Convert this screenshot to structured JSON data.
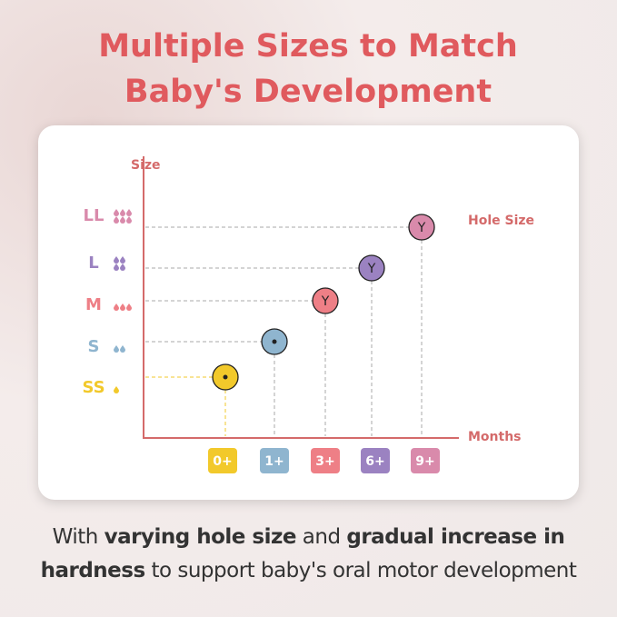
{
  "header": {
    "title_lines": [
      "Multiple Sizes to Match",
      "Baby's Development"
    ]
  },
  "diagram": {
    "y_axis_label": "Size",
    "x_axis_label": "Months",
    "hole_label": "Hole Size",
    "rows": [
      {
        "size": "SS",
        "color": "#f2c92b",
        "month": "0+"
      },
      {
        "size": "S",
        "color": "#8fb5cf",
        "month": "1+"
      },
      {
        "size": "M",
        "color": "#ee7f86",
        "month": "3+",
        "hole_letter": "Y"
      },
      {
        "size": "L",
        "color": "#9b82c1",
        "month": "6+",
        "hole_letter": "Y"
      },
      {
        "size": "LL",
        "color": "#d98aab",
        "month": "9+",
        "hole_letter": "Y"
      }
    ]
  },
  "footer": {
    "lines": [
      [
        {
          "text": "With "
        },
        {
          "text": "varying hole size",
          "bold": true
        },
        {
          "text": " and "
        },
        {
          "text": "gradual increase in",
          "bold": true
        }
      ],
      [
        {
          "text": "hardness",
          "bold": true
        },
        {
          "text": " to support baby's oral motor development"
        }
      ]
    ]
  }
}
